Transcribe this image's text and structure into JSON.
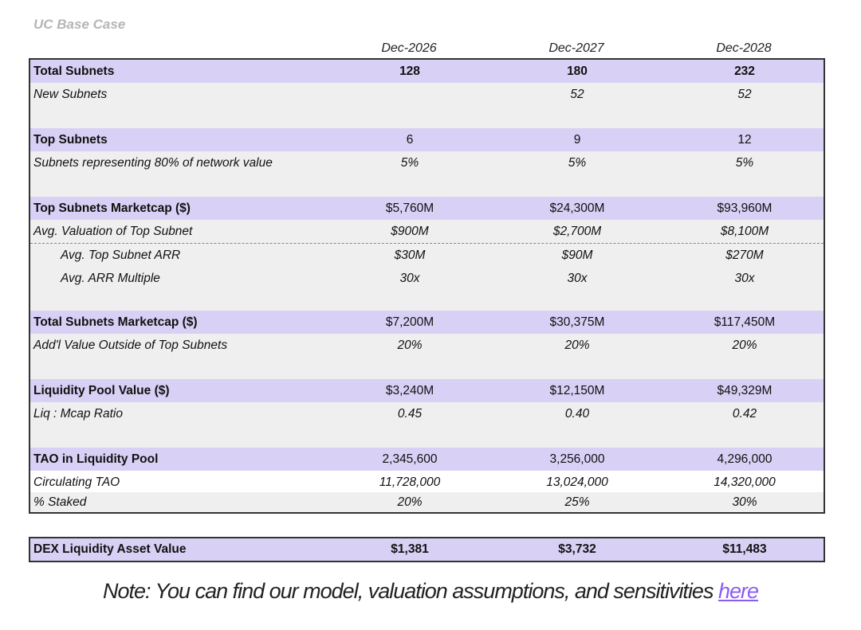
{
  "scenario_label": "UC Base Case",
  "columns": [
    "Dec-2026",
    "Dec-2027",
    "Dec-2028"
  ],
  "rows": [
    {
      "label": "Total Subnets",
      "values": [
        "128",
        "180",
        "232"
      ]
    },
    {
      "label": "New Subnets",
      "values": [
        "",
        "52",
        "52"
      ]
    },
    {
      "label": "Top Subnets",
      "values": [
        "6",
        "9",
        "12"
      ]
    },
    {
      "label": "Subnets representing 80% of network value",
      "values": [
        "5%",
        "5%",
        "5%"
      ]
    },
    {
      "label": "Top Subnets Marketcap ($)",
      "values": [
        "$5,760M",
        "$24,300M",
        "$93,960M"
      ]
    },
    {
      "label": "Avg. Valuation of Top Subnet",
      "values": [
        "$900M",
        "$2,700M",
        "$8,100M"
      ]
    },
    {
      "label": "Avg. Top Subnet ARR",
      "values": [
        "$30M",
        "$90M",
        "$270M"
      ]
    },
    {
      "label": "Avg. ARR Multiple",
      "values": [
        "30x",
        "30x",
        "30x"
      ]
    },
    {
      "label": "Total Subnets Marketcap ($)",
      "values": [
        "$7,200M",
        "$30,375M",
        "$117,450M"
      ]
    },
    {
      "label": "Add'l Value Outside of Top Subnets",
      "values": [
        "20%",
        "20%",
        "20%"
      ]
    },
    {
      "label": "Liquidity Pool Value ($)",
      "values": [
        "$3,240M",
        "$12,150M",
        "$49,329M"
      ]
    },
    {
      "label": "Liq : Mcap Ratio",
      "values": [
        "0.45",
        "0.40",
        "0.42"
      ]
    },
    {
      "label": "TAO in Liquidity Pool",
      "values": [
        "2,345,600",
        "3,256,000",
        "4,296,000"
      ]
    },
    {
      "label": "Circulating TAO",
      "values": [
        "11,728,000",
        "13,024,000",
        "14,320,000"
      ]
    },
    {
      "label": "% Staked",
      "values": [
        "20%",
        "25%",
        "30%"
      ]
    }
  ],
  "dex": {
    "label": "DEX Liquidity Asset Value",
    "values": [
      "$1,381",
      "$3,732",
      "$11,483"
    ]
  },
  "note": {
    "text": "Note: You can find our model, valuation assumptions, and sensitivities ",
    "link": "here"
  },
  "colors": {
    "header_band": "#d8d0f5",
    "sub_band": "#efefef",
    "link": "#8a5cf5"
  }
}
